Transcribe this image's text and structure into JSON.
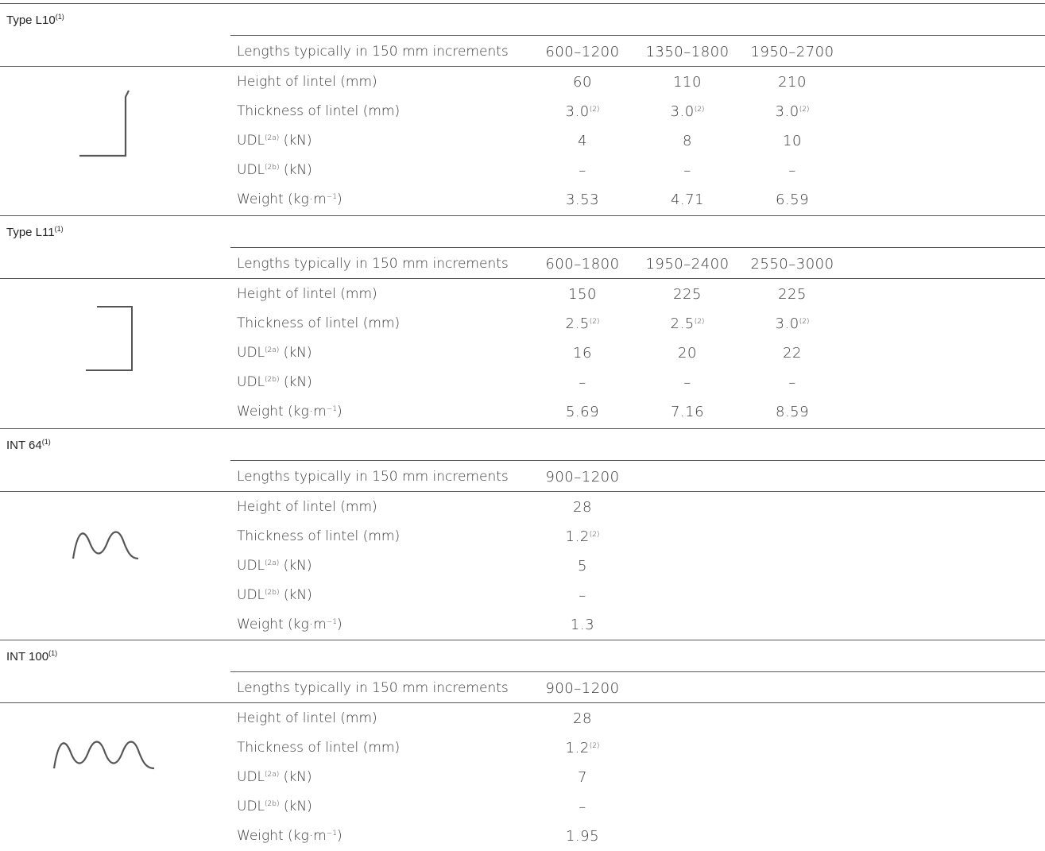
{
  "sections": [
    {
      "title": "Type L10",
      "title_sup": "(1)",
      "lengths_label": "Lengths typically in 150 mm increments",
      "lengths": [
        "600–1200",
        "1350–1800",
        "1950–2700"
      ],
      "icon": "angle-lintel-icon",
      "rows": [
        {
          "label": "Height of lintel (mm)",
          "values": [
            "60",
            "110",
            "210"
          ],
          "sups": [
            "",
            "",
            ""
          ]
        },
        {
          "label": "Thickness of lintel (mm)",
          "values": [
            "3.0",
            "3.0",
            "3.0"
          ],
          "sups": [
            "(2)",
            "(2)",
            "(2)"
          ]
        },
        {
          "label": "UDL",
          "label_sup": "(2a)",
          "label_suffix": " (kN)",
          "values": [
            "4",
            "8",
            "10"
          ],
          "sups": [
            "",
            "",
            ""
          ]
        },
        {
          "label": "UDL",
          "label_sup": "(2b)",
          "label_suffix": " (kN)",
          "values": [
            "–",
            "–",
            "–"
          ],
          "sups": [
            "",
            "",
            ""
          ]
        },
        {
          "label": "Weight (kg·m",
          "label_sup": "−1",
          "label_suffix": ")",
          "values": [
            "3.53",
            "4.71",
            "6.59"
          ],
          "sups": [
            "",
            "",
            ""
          ]
        }
      ]
    },
    {
      "title": "Type L11",
      "title_sup": "(1)",
      "lengths_label": "Lengths typically in 150 mm increments",
      "lengths": [
        "600–1800",
        "1950–2400",
        "2550–3000"
      ],
      "icon": "channel-lintel-icon",
      "rows": [
        {
          "label": "Height of lintel (mm)",
          "values": [
            "150",
            "225",
            "225"
          ],
          "sups": [
            "",
            "",
            ""
          ]
        },
        {
          "label": "Thickness of lintel (mm)",
          "values": [
            "2.5",
            "2.5",
            "3.0"
          ],
          "sups": [
            "(2)",
            "(2)",
            "(2)"
          ]
        },
        {
          "label": "UDL",
          "label_sup": "(2a)",
          "label_suffix": " (kN)",
          "values": [
            "16",
            "20",
            "22"
          ],
          "sups": [
            "",
            "",
            ""
          ]
        },
        {
          "label": "UDL",
          "label_sup": "(2b)",
          "label_suffix": " (kN)",
          "values": [
            "–",
            "–",
            "–"
          ],
          "sups": [
            "",
            "",
            ""
          ]
        },
        {
          "label": "Weight (kg·m",
          "label_sup": "−1",
          "label_suffix": ")",
          "values": [
            "5.69",
            "7.16",
            "8.59"
          ],
          "sups": [
            "",
            "",
            ""
          ]
        }
      ]
    },
    {
      "title": "INT 64",
      "title_sup": "(1)",
      "lengths_label": "Lengths typically in 150 mm increments",
      "lengths": [
        "900–1200"
      ],
      "icon": "corrugated-2-wave-icon",
      "rows": [
        {
          "label": "Height of lintel (mm)",
          "values": [
            "28"
          ],
          "sups": [
            ""
          ]
        },
        {
          "label": "Thickness of lintel (mm)",
          "values": [
            "1.2"
          ],
          "sups": [
            "(2)"
          ]
        },
        {
          "label": "UDL",
          "label_sup": "(2a)",
          "label_suffix": " (kN)",
          "values": [
            "5"
          ],
          "sups": [
            ""
          ]
        },
        {
          "label": "UDL",
          "label_sup": "(2b)",
          "label_suffix": " (kN)",
          "values": [
            "–"
          ],
          "sups": [
            ""
          ]
        },
        {
          "label": "Weight (kg·m",
          "label_sup": "−1",
          "label_suffix": ")",
          "values": [
            "1.3"
          ],
          "sups": [
            ""
          ]
        }
      ]
    },
    {
      "title": "INT 100",
      "title_sup": "(1)",
      "lengths_label": "Lengths typically in 150 mm increments",
      "lengths": [
        "900–1200"
      ],
      "icon": "corrugated-3-wave-icon",
      "rows": [
        {
          "label": "Height of lintel (mm)",
          "values": [
            "28"
          ],
          "sups": [
            ""
          ]
        },
        {
          "label": "Thickness of lintel (mm)",
          "values": [
            "1.2"
          ],
          "sups": [
            "(2)"
          ]
        },
        {
          "label": "UDL",
          "label_sup": "(2a)",
          "label_suffix": " (kN)",
          "values": [
            "7"
          ],
          "sups": [
            ""
          ]
        },
        {
          "label": "UDL",
          "label_sup": "(2b)",
          "label_suffix": " (kN)",
          "values": [
            "–"
          ],
          "sups": [
            ""
          ]
        },
        {
          "label": "Weight (kg·m",
          "label_sup": "−1",
          "label_suffix": ")",
          "values": [
            "1.95"
          ],
          "sups": [
            ""
          ]
        }
      ]
    }
  ]
}
